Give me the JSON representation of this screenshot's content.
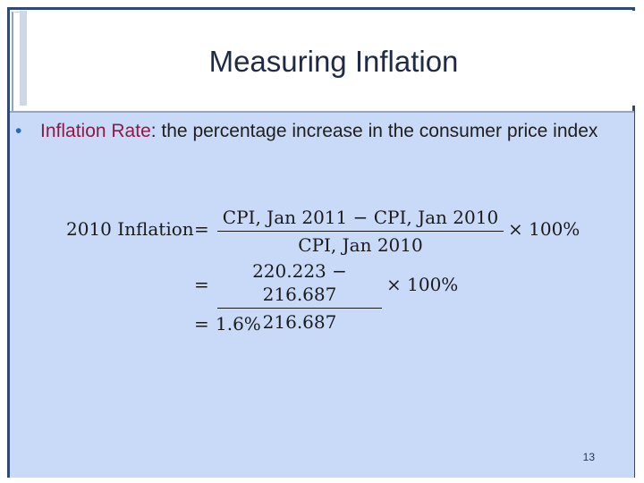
{
  "slide": {
    "title": "Measuring Inflation",
    "bullet": {
      "term": "Inflation Rate",
      "definition": ": the percentage increase in the consumer price index"
    },
    "equation": {
      "lhs": "2010 Inflation",
      "equals": "=",
      "line1_numerator": "CPI, Jan 2011 − CPI, Jan 2010",
      "line1_denominator": "CPI, Jan 2010",
      "times": "× 100%",
      "line2_numerator": "220.223 − 216.687",
      "line2_denominator": "216.687",
      "result": "1.6%"
    },
    "page_number": "13"
  }
}
